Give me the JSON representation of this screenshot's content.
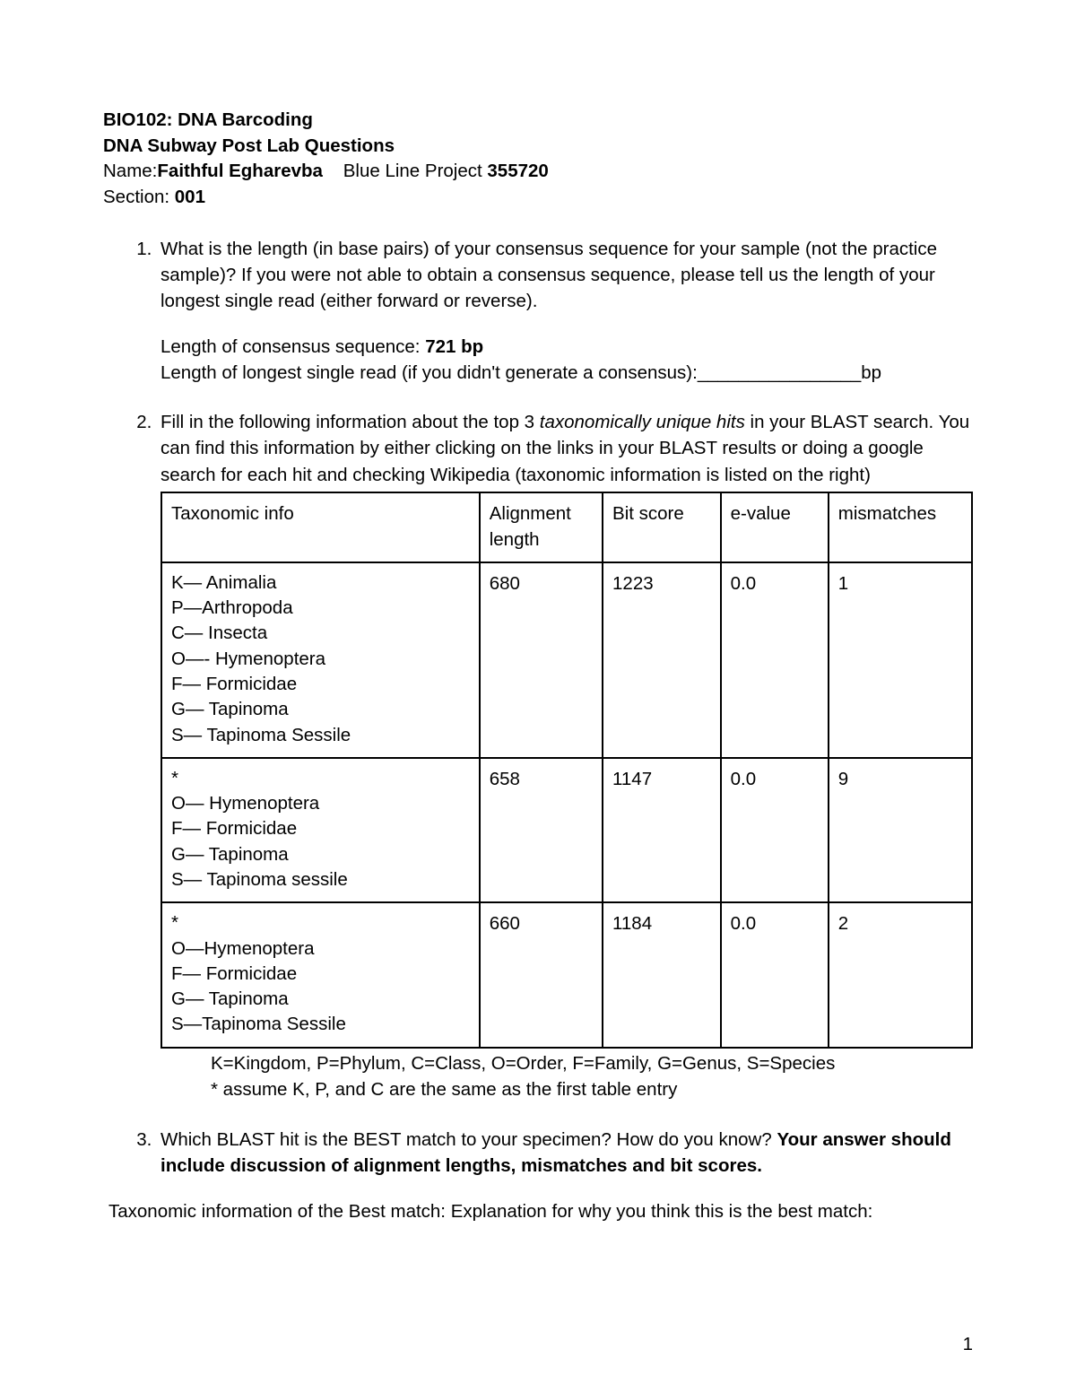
{
  "header": {
    "course_line": "BIO102: DNA Barcoding",
    "subtitle": "DNA Subway Post Lab Questions",
    "name_label": "Name:",
    "student_name": "Faithful Egharevba",
    "project_label": "Blue Line Project",
    "project_number": "355720",
    "section_label": "Section:",
    "section_number": "001"
  },
  "q1": {
    "text": "What is the length (in base pairs) of your consensus sequence for your sample (not the practice sample)? If you were not able to obtain a consensus sequence, please tell us the length of your longest single read (either forward or reverse).",
    "consensus_label": "Length of consensus sequence: ",
    "consensus_value": "721 bp",
    "longest_label": "Length of longest single read (if you didn't generate a consensus):",
    "blank": "________________",
    "unit": "bp"
  },
  "q2": {
    "lead_a": "Fill in the following information about the top 3 ",
    "lead_italic": "taxonomically unique hits",
    "lead_b": " in your BLAST search. You can find this information by either clicking on the links in your BLAST results or doing a google search for each hit and checking Wikipedia (taxonomic information is listed on the right)",
    "headers": {
      "tax": "Taxonomic info",
      "al": "Alignment length",
      "bit": "Bit score",
      "ev": "e-value",
      "mm": "mismatches"
    },
    "rows": [
      {
        "tax": [
          "K— Animalia",
          "P—Arthropoda",
          "C— Insecta",
          "O—- Hymenoptera",
          "F— Formicidae",
          "G— Tapinoma",
          "S— Tapinoma Sessile"
        ],
        "al": "680",
        "bit": "1223",
        "ev": "0.0",
        "mm": "1"
      },
      {
        "tax": [
          "*",
          "O— Hymenoptera",
          "F— Formicidae",
          "G— Tapinoma",
          "S— Tapinoma sessile"
        ],
        "al": "658",
        "bit": "1147",
        "ev": "0.0",
        "mm": "9"
      },
      {
        "tax": [
          "*",
          "O—Hymenoptera",
          "F— Formicidae",
          "G— Tapinoma",
          "S—Tapinoma Sessile"
        ],
        "al": "660",
        "bit": "1184",
        "ev": "0.0",
        "mm": "2"
      }
    ],
    "note1": "K=Kingdom, P=Phylum, C=Class, O=Order, F=Family, G=Genus, S=Species",
    "note2": "* assume K, P, and C are the same as the first table entry"
  },
  "q3": {
    "lead_a": "Which BLAST hit is the BEST match to your specimen? How do you know? ",
    "lead_bold": "Your answer should include discussion of alignment lengths, mismatches and bit scores.",
    "answer_text": "Taxonomic information of the Best match: Explanation for why you think this is the best match:"
  },
  "page_number": "1"
}
